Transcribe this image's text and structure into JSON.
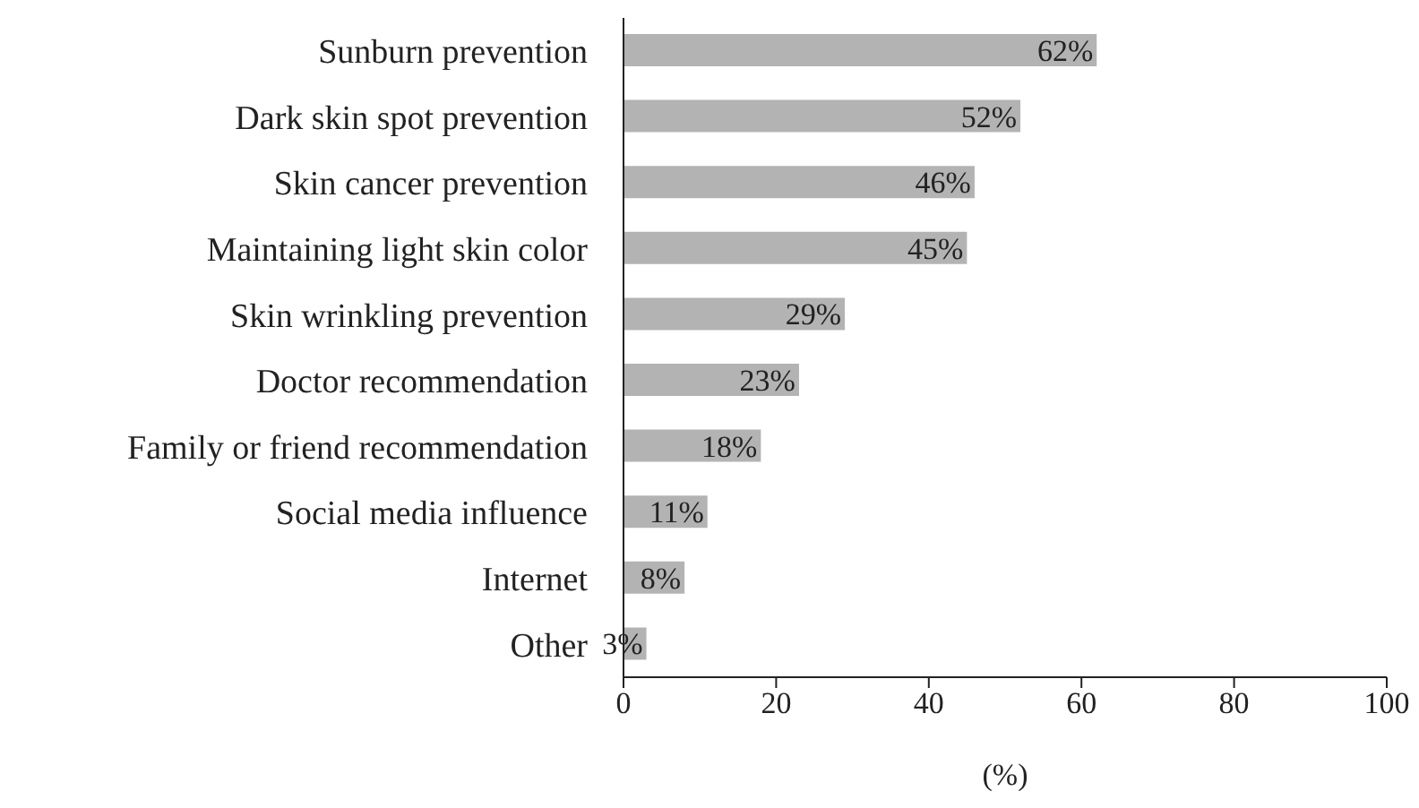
{
  "chart_data": {
    "type": "bar",
    "orientation": "horizontal",
    "xlabel": "(%)",
    "categories": [
      "Sunburn prevention",
      "Dark skin spot prevention",
      "Skin cancer prevention",
      "Maintaining light skin color",
      "Skin wrinkling prevention",
      "Doctor recommendation",
      "Family or friend recommendation",
      "Social media influence",
      "Internet",
      "Other"
    ],
    "values": [
      62,
      52,
      46,
      45,
      29,
      23,
      18,
      11,
      8,
      3
    ],
    "value_labels": [
      "62%",
      "52%",
      "46%",
      "45%",
      "29%",
      "23%",
      "18%",
      "11%",
      "8%",
      "3%"
    ],
    "color": "#b3b3b3",
    "xlim": [
      0,
      100
    ],
    "xticks": [
      0,
      20,
      40,
      60,
      80,
      100
    ],
    "grid": false,
    "legend": false
  }
}
